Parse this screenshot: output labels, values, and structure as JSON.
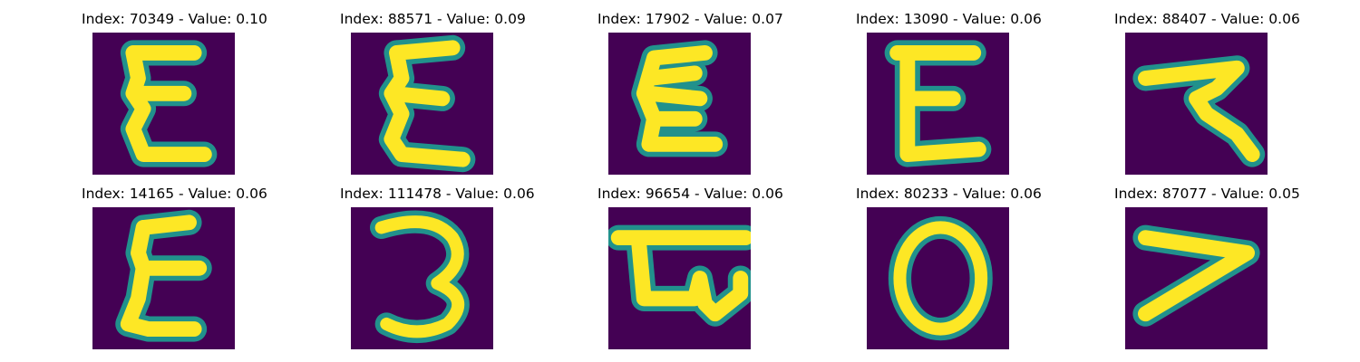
{
  "figure": {
    "background": "#ffffff",
    "colormap": {
      "low": "#440154",
      "mid": "#21918c",
      "high": "#fde725"
    },
    "panels": [
      {
        "title": "Index: 70349 - Value: 0.10",
        "glyph": "E-curly"
      },
      {
        "title": "Index: 88571 - Value: 0.09",
        "glyph": "E-curly"
      },
      {
        "title": "Index: 17902 - Value: 0.07",
        "glyph": "E-curly"
      },
      {
        "title": "Index: 13090 - Value: 0.06",
        "glyph": "E-block"
      },
      {
        "title": "Index: 88407 - Value: 0.06",
        "glyph": "stroke-shape"
      },
      {
        "title": "Index: 14165 - Value: 0.06",
        "glyph": "E-curly"
      },
      {
        "title": "Index: 111478 - Value: 0.06",
        "glyph": "three"
      },
      {
        "title": "Index: 96654 - Value: 0.06",
        "glyph": "bar-loop"
      },
      {
        "title": "Index: 80233 - Value: 0.06",
        "glyph": "zero"
      },
      {
        "title": "Index: 87077 - Value: 0.05",
        "glyph": "seven"
      }
    ]
  }
}
